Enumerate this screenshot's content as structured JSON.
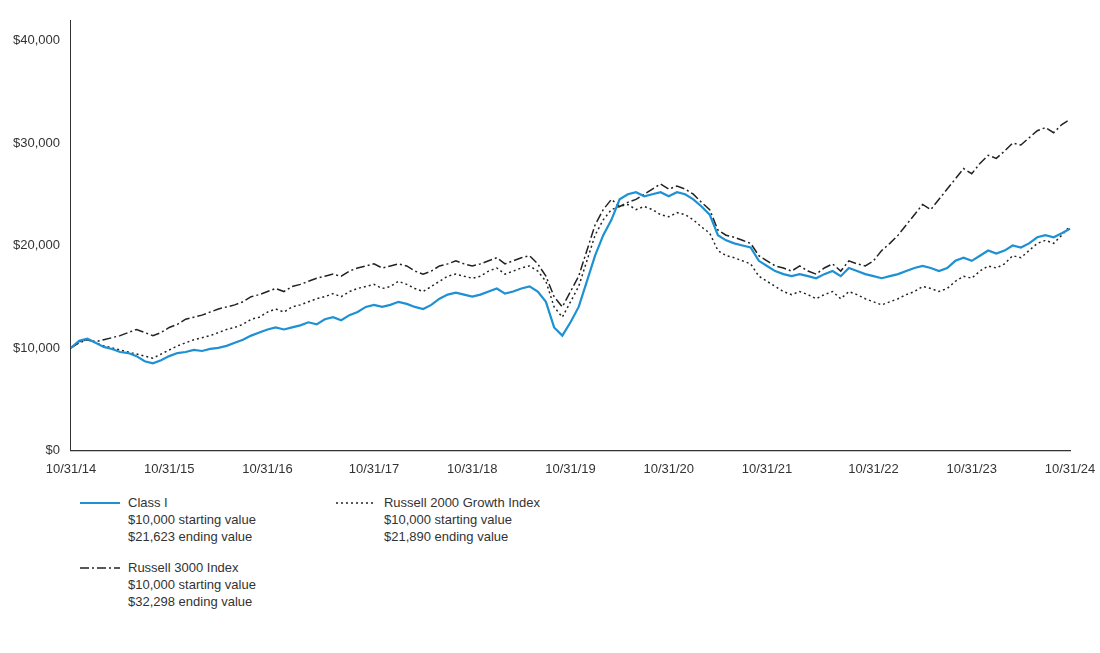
{
  "chart_data": {
    "type": "line",
    "categories": [
      "10/31/14",
      null,
      null,
      null,
      null,
      null,
      null,
      null,
      null,
      null,
      null,
      null,
      "10/31/15",
      null,
      null,
      null,
      null,
      null,
      null,
      null,
      null,
      null,
      null,
      null,
      "10/31/16",
      null,
      null,
      null,
      null,
      null,
      null,
      null,
      null,
      null,
      null,
      null,
      null,
      "10/31/17",
      null,
      null,
      null,
      null,
      null,
      null,
      null,
      null,
      null,
      null,
      null,
      "10/31/18",
      null,
      null,
      null,
      null,
      null,
      null,
      null,
      null,
      null,
      null,
      null,
      "10/31/19",
      null,
      null,
      null,
      null,
      null,
      null,
      null,
      null,
      null,
      null,
      null,
      "10/31/20",
      null,
      null,
      null,
      null,
      null,
      null,
      null,
      null,
      null,
      null,
      null,
      "10/31/21",
      null,
      null,
      null,
      null,
      null,
      null,
      null,
      null,
      null,
      null,
      null,
      null,
      "10/31/22",
      null,
      null,
      null,
      null,
      null,
      null,
      null,
      null,
      null,
      null,
      null,
      "10/31/23",
      null,
      null,
      null,
      null,
      null,
      null,
      null,
      null,
      null,
      null,
      null,
      "10/31/24"
    ],
    "series": [
      {
        "name": "Class I\n$10,000 starting value\n$21,623 ending value",
        "color": "#1e90d4",
        "line_style": "solid",
        "values": [
          10000,
          10700,
          10900,
          10500,
          10100,
          9900,
          9600,
          9500,
          9200,
          8700,
          8500,
          8800,
          9200,
          9500,
          9600,
          9800,
          9700,
          9900,
          10000,
          10200,
          10500,
          10800,
          11200,
          11500,
          11800,
          12000,
          11800,
          12000,
          12200,
          12500,
          12300,
          12800,
          13000,
          12700,
          13200,
          13500,
          14000,
          14200,
          14000,
          14200,
          14500,
          14300,
          14000,
          13800,
          14200,
          14800,
          15200,
          15400,
          15200,
          15000,
          15200,
          15500,
          15800,
          15300,
          15500,
          15800,
          16000,
          15500,
          14500,
          12000,
          11200,
          12500,
          14000,
          16500,
          19000,
          21000,
          22500,
          24500,
          25000,
          25200,
          24800,
          25000,
          25200,
          24800,
          25200,
          25000,
          24500,
          23800,
          23000,
          21000,
          20500,
          20200,
          20000,
          19800,
          18500,
          18000,
          17500,
          17200,
          17000,
          17200,
          17000,
          16800,
          17200,
          17500,
          17000,
          17800,
          17500,
          17200,
          17000,
          16800,
          17000,
          17200,
          17500,
          17800,
          18000,
          17800,
          17500,
          17800,
          18500,
          18800,
          18500,
          19000,
          19500,
          19200,
          19500,
          20000,
          19800,
          20200,
          20800,
          21000,
          20800,
          21200,
          21623
        ]
      },
      {
        "name": "Russell 3000 Index\n$10,000 starting value\n$32,298 ending value",
        "color": "#222222",
        "line_style": "dashdot",
        "values": [
          10000,
          10500,
          10800,
          10600,
          10800,
          11000,
          11200,
          11500,
          11800,
          11500,
          11200,
          11500,
          12000,
          12300,
          12800,
          13000,
          13200,
          13500,
          13800,
          14000,
          14200,
          14500,
          15000,
          15200,
          15500,
          15800,
          15500,
          16000,
          16200,
          16500,
          16800,
          17000,
          17200,
          17000,
          17500,
          17800,
          18000,
          18200,
          17800,
          18000,
          18200,
          18000,
          17500,
          17200,
          17500,
          18000,
          18200,
          18500,
          18200,
          18000,
          18200,
          18500,
          18800,
          18200,
          18500,
          18800,
          19000,
          18200,
          17000,
          15000,
          14000,
          15500,
          17000,
          19500,
          22000,
          23500,
          24500,
          23800,
          24200,
          24500,
          25000,
          25500,
          26000,
          25500,
          25800,
          25500,
          25000,
          24200,
          23500,
          21500,
          21000,
          20800,
          20500,
          20200,
          19000,
          18500,
          18000,
          17800,
          17500,
          18000,
          17500,
          17200,
          17800,
          18200,
          17500,
          18500,
          18200,
          18000,
          18500,
          19500,
          20200,
          21000,
          22000,
          23000,
          24000,
          23500,
          24500,
          25500,
          26500,
          27500,
          27000,
          28000,
          28800,
          28500,
          29200,
          30000,
          29800,
          30500,
          31200,
          31500,
          31000,
          31800,
          32298
        ]
      },
      {
        "name": "Russell 2000 Growth Index\n$10,000 starting value\n$21,890 ending value",
        "color": "#222222",
        "line_style": "dotted",
        "values": [
          10000,
          10600,
          10800,
          10500,
          10200,
          10000,
          9800,
          9600,
          9400,
          9200,
          9000,
          9400,
          9800,
          10200,
          10500,
          10800,
          11000,
          11200,
          11500,
          11800,
          12000,
          12300,
          12800,
          13000,
          13500,
          13800,
          13500,
          14000,
          14200,
          14500,
          14800,
          15000,
          15300,
          15000,
          15500,
          15800,
          16000,
          16200,
          15800,
          16000,
          16500,
          16200,
          15800,
          15500,
          16000,
          16500,
          17000,
          17200,
          17000,
          16800,
          17000,
          17500,
          17800,
          17200,
          17500,
          17800,
          18000,
          17500,
          16500,
          14000,
          13000,
          14500,
          16000,
          18500,
          21000,
          22500,
          23500,
          23800,
          24000,
          23500,
          23800,
          23500,
          23000,
          22800,
          23200,
          23000,
          22500,
          21800,
          21200,
          19500,
          19000,
          18800,
          18500,
          18200,
          17000,
          16500,
          16000,
          15500,
          15200,
          15500,
          15200,
          14800,
          15200,
          15500,
          14800,
          15500,
          15200,
          14800,
          14500,
          14200,
          14500,
          14800,
          15200,
          15500,
          16000,
          15800,
          15500,
          15800,
          16500,
          17000,
          16800,
          17500,
          18000,
          17800,
          18200,
          19000,
          18800,
          19500,
          20200,
          20500,
          20200,
          21000,
          21890
        ]
      }
    ],
    "ylim": [
      0,
      42000
    ],
    "yticks": [
      {
        "value": 0,
        "label": "$0"
      },
      {
        "value": 10000,
        "label": "$10,000"
      },
      {
        "value": 20000,
        "label": "$20,000"
      },
      {
        "value": 30000,
        "label": "$30,000"
      },
      {
        "value": 40000,
        "label": "$40,000"
      }
    ],
    "grid": false,
    "legend": "bottom"
  }
}
